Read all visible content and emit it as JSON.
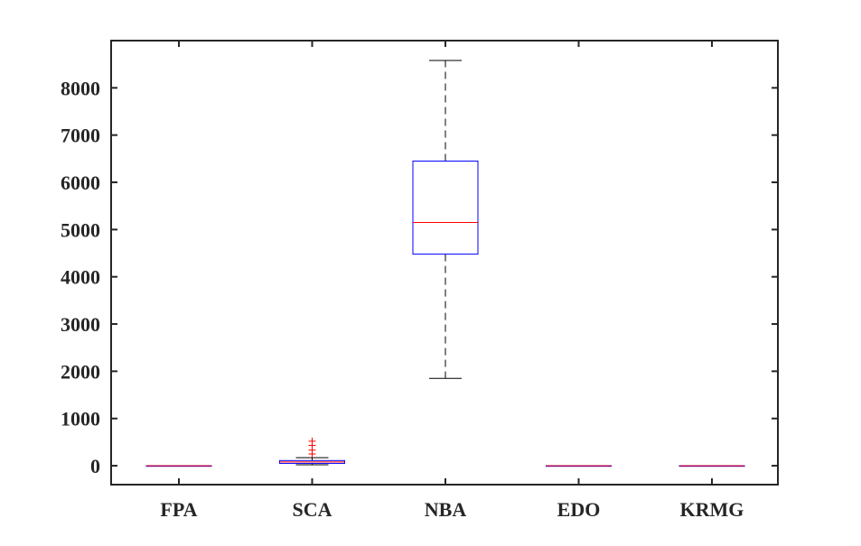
{
  "chart_data": {
    "type": "box",
    "categories": [
      "FPA",
      "SCA",
      "NBA",
      "EDO",
      "KRMG"
    ],
    "ylim": [
      -400,
      9000
    ],
    "yticks": [
      0,
      1000,
      2000,
      3000,
      4000,
      5000,
      6000,
      7000,
      8000
    ],
    "ytick_labels": [
      "0",
      "1000",
      "2000",
      "3000",
      "4000",
      "5000",
      "6000",
      "7000",
      "8000"
    ],
    "grid": false,
    "boxes": [
      {
        "name": "FPA",
        "min": 0,
        "q1": 0,
        "median": 0,
        "q3": 0,
        "max": 0,
        "outliers": []
      },
      {
        "name": "SCA",
        "min": 20,
        "q1": 50,
        "median": 80,
        "q3": 110,
        "max": 170,
        "outliers": [
          250,
          330,
          430,
          520
        ]
      },
      {
        "name": "NBA",
        "min": 1850,
        "q1": 4480,
        "median": 5150,
        "q3": 6450,
        "max": 8580,
        "outliers": []
      },
      {
        "name": "EDO",
        "min": 0,
        "q1": 0,
        "median": 0,
        "q3": 0,
        "max": 0,
        "outliers": []
      },
      {
        "name": "KRMG",
        "min": 0,
        "q1": 0,
        "median": 0,
        "q3": 0,
        "max": 0,
        "outliers": []
      }
    ],
    "colors": {
      "box": "#0000ff",
      "median": "#ff0000",
      "whisker": "#000000",
      "outlier": "#ff0000",
      "axis": "#262626"
    }
  }
}
